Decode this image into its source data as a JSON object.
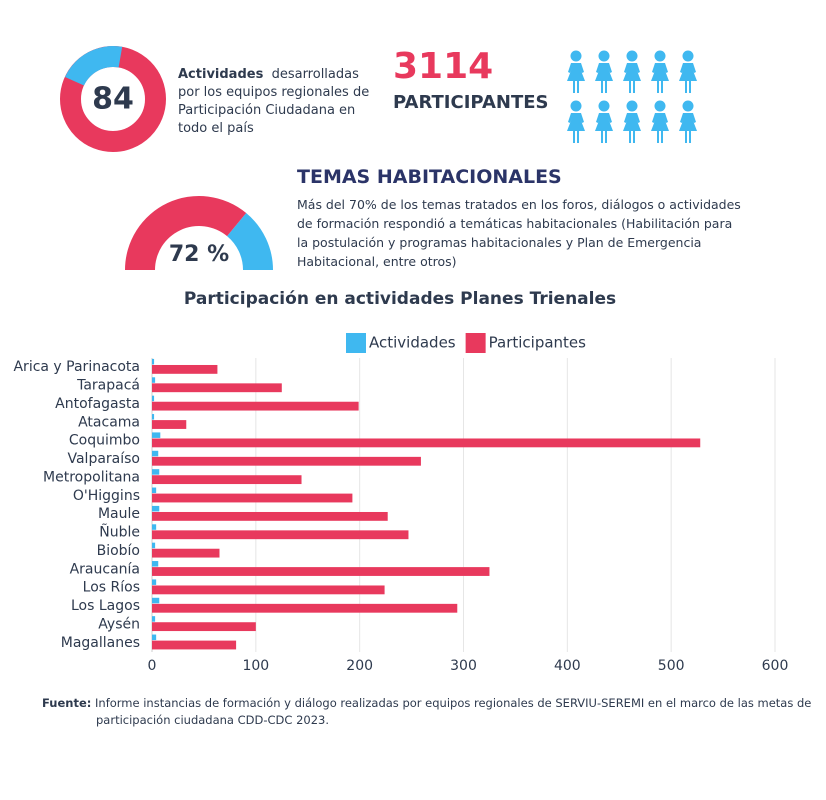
{
  "header": {
    "activities_count": "84",
    "activities_bold": "Actividades",
    "activities_text": "desarrolladas por los equipos regionales de Participación Ciudadana en todo el país",
    "participants_count": "3114",
    "participants_label": "PARTICIPANTES"
  },
  "topics": {
    "title": "TEMAS HABITACIONALES",
    "text": "Más del 70% de los temas tratados en los foros, diálogos o actividades de formación respondió a temáticas habitacionales (Habilitación para la postulación y programas habitacionales y Plan de Emergencia Habitacional, entre otros)",
    "gauge": {
      "value": 72,
      "label": "72 %"
    }
  },
  "chart_data": {
    "type": "bar",
    "orientation": "horizontal",
    "title": "Participación en actividades Planes Trienales",
    "categories": [
      "Arica y Parinacota",
      "Tarapacá",
      "Antofagasta",
      "Atacama",
      "Coquimbo",
      "Valparaíso",
      "Metropolitana",
      "O'Higgins",
      "Maule",
      "Ñuble",
      "Biobío",
      "Araucanía",
      "Los Ríos",
      "Los Lagos",
      "Aysén",
      "Magallanes"
    ],
    "series": [
      {
        "name": "Actividades",
        "color": "#3fb8f0",
        "values": [
          2,
          3,
          2,
          2,
          8,
          6,
          7,
          4,
          7,
          4,
          3,
          6,
          4,
          7,
          3,
          4
        ]
      },
      {
        "name": "Participantes",
        "color": "#e8395d",
        "values": [
          63,
          125,
          199,
          33,
          528,
          259,
          144,
          193,
          227,
          247,
          65,
          325,
          224,
          294,
          100,
          81
        ]
      }
    ],
    "xlim": [
      0,
      600
    ],
    "xticks": [
      0,
      100,
      200,
      300,
      400,
      500,
      600
    ],
    "grid": true,
    "legend": "top"
  },
  "footer": {
    "source_label": "Fuente:",
    "source_text": "Informe  instancias de formación y diálogo realizadas por equipos regionales de SERVIU-SEREMI en el marco de las metas  de participación ciudadana CDD-CDC 2023."
  }
}
